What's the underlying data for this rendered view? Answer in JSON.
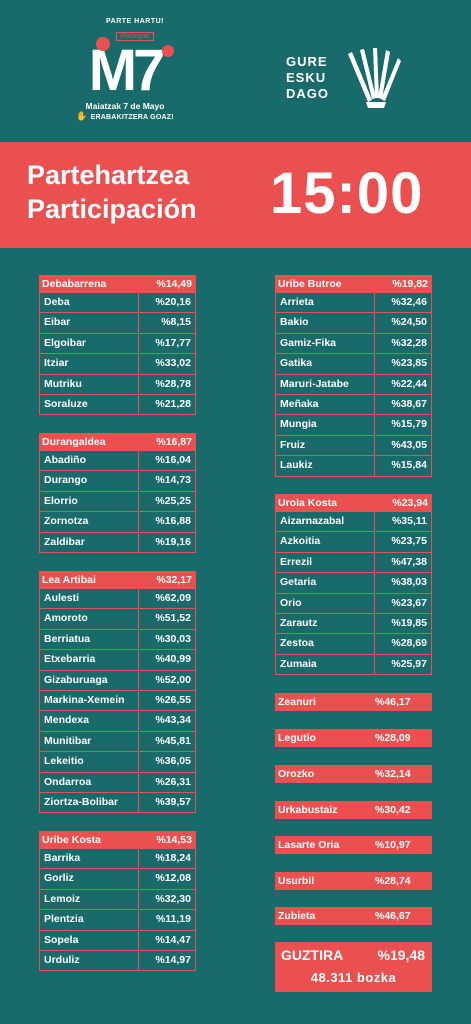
{
  "logo_left": {
    "tag1": "PARTE HARTU!",
    "tag2": "Participa!",
    "mark": "M7",
    "line1": "Maiatzak 7 de Mayo",
    "line2": "ERABAKITZERA GOAZ!"
  },
  "logo_right": {
    "line1": "GURE",
    "line2": "ESKU",
    "line3": "DAGO"
  },
  "banner": {
    "title_eu": "Partehartzea",
    "title_es": "Participación",
    "time": "15:00"
  },
  "colors": {
    "background": "#196a6b",
    "accent": "#e9504f"
  },
  "left_tables": [
    {
      "name": "Debabarrena",
      "value": "%14,49",
      "rows": [
        [
          "Deba",
          "%20,16"
        ],
        [
          "Eibar",
          "%8,15"
        ],
        [
          "Elgoibar",
          "%17,77"
        ],
        [
          "Itziar",
          "%33,02"
        ],
        [
          "Mutriku",
          "%28,78"
        ],
        [
          "Soraluze",
          "%21,28"
        ]
      ]
    },
    {
      "name": "Durangaldea",
      "value": "%16,87",
      "rows": [
        [
          "Abadiño",
          "%16,04"
        ],
        [
          "Durango",
          "%14,73"
        ],
        [
          "Elorrio",
          "%25,25"
        ],
        [
          "Zornotza",
          "%16,88"
        ],
        [
          "Zaldibar",
          "%19,16"
        ]
      ]
    },
    {
      "name": "Lea Artibai",
      "value": "%32,17",
      "rows": [
        [
          "Aulesti",
          "%62,09"
        ],
        [
          "Amoroto",
          "%51,52"
        ],
        [
          "Berriatua",
          "%30,03"
        ],
        [
          "Etxebarria",
          "%40,99"
        ],
        [
          "Gizaburuaga",
          "%52,00"
        ],
        [
          "Markina-Xemein",
          "%26,55"
        ],
        [
          "Mendexa",
          "%43,34"
        ],
        [
          "Munitibar",
          "%45,81"
        ],
        [
          "Lekeitio",
          "%36,05"
        ],
        [
          "Ondarroa",
          "%26,31"
        ],
        [
          "Ziortza-Bolibar",
          "%39,57"
        ]
      ]
    },
    {
      "name": "Uribe Kosta",
      "value": "%14,53",
      "rows": [
        [
          "Barrika",
          "%18,24"
        ],
        [
          "Gorliz",
          "%12,08"
        ],
        [
          "Lemoiz",
          "%32,30"
        ],
        [
          "Plentzia",
          "%11,19"
        ],
        [
          "Sopela",
          "%14,47"
        ],
        [
          "Urduliz",
          "%14,97"
        ]
      ]
    }
  ],
  "right_tables": [
    {
      "name": "Uribe Butroe",
      "value": "%19,82",
      "rows": [
        [
          "Arrieta",
          "%32,46"
        ],
        [
          "Bakio",
          "%24,50"
        ],
        [
          "Gamiz-Fika",
          "%32,28"
        ],
        [
          "Gatika",
          "%23,85"
        ],
        [
          "Maruri-Jatabe",
          "%22,44"
        ],
        [
          "Meñaka",
          "%38,67"
        ],
        [
          "Mungia",
          "%15,79"
        ],
        [
          "Fruiz",
          "%43,05"
        ],
        [
          "Laukiz",
          "%15,84"
        ]
      ]
    },
    {
      "name": "Urola Kosta",
      "value": "%23,94",
      "rows": [
        [
          "Aizarnazabal",
          "%35,11"
        ],
        [
          "Azkoitia",
          "%23,75"
        ],
        [
          "Errezil",
          "%47,38"
        ],
        [
          "Getaria",
          "%38,03"
        ],
        [
          "Orio",
          "%23,67"
        ],
        [
          "Zarautz",
          "%19,85"
        ],
        [
          "Zestoa",
          "%28,69"
        ],
        [
          "Zumaia",
          "%25,97"
        ]
      ]
    }
  ],
  "singles": [
    [
      "Zeanuri",
      "%46,17"
    ],
    [
      "Legutio",
      "%28,09"
    ],
    [
      "Orozko",
      "%32,14"
    ],
    [
      "Urkabustaiz",
      "%30,42"
    ],
    [
      "Lasarte Oria",
      "%10,97"
    ],
    [
      "Usurbil",
      "%28,74"
    ],
    [
      "Zubieta",
      "%46,67"
    ]
  ],
  "total": {
    "label": "GUZTIRA",
    "value": "%19,48",
    "votes": "48.311 bozka"
  }
}
